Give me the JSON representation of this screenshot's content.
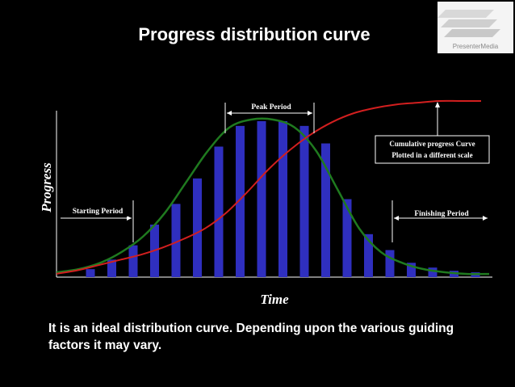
{
  "slide": {
    "title": "Progress distribution curve",
    "caption": "It is an ideal distribution curve. Depending upon the various guiding factors it may vary.",
    "logo_text": "PresenterMedia"
  },
  "chart_data": {
    "type": "bar",
    "title": "Progress distribution curve",
    "xlabel": "Time",
    "ylabel": "Progress",
    "ylim": [
      0,
      100
    ],
    "bar_color": "#2f2fbf",
    "distribution_curve_color": "#1f7a1f",
    "cumulative_curve_color": "#d21f1f",
    "series": [
      {
        "values": [
          5,
          11,
          20,
          33,
          46,
          62,
          82,
          95,
          98,
          98,
          95,
          84,
          49,
          27,
          17,
          9,
          6,
          4,
          3
        ]
      }
    ],
    "distribution_curve": [
      2,
      4,
      8,
      15,
      25,
      40,
      60,
      80,
      95,
      100,
      100,
      95,
      80,
      55,
      30,
      15,
      8,
      4,
      2,
      1,
      1
    ],
    "cumulative_curve": [
      1,
      3,
      6,
      9,
      12,
      16,
      21,
      27,
      36,
      48,
      61,
      72,
      81,
      88,
      93,
      96,
      98,
      99,
      100,
      100,
      100
    ],
    "annotations": {
      "starting": "Starting Period",
      "peak": "Peak Period",
      "finishing": "Finishing  Period",
      "cumulative_line1": "Cumulative progress Curve",
      "cumulative_line2": "Plotted in a different scale"
    }
  }
}
